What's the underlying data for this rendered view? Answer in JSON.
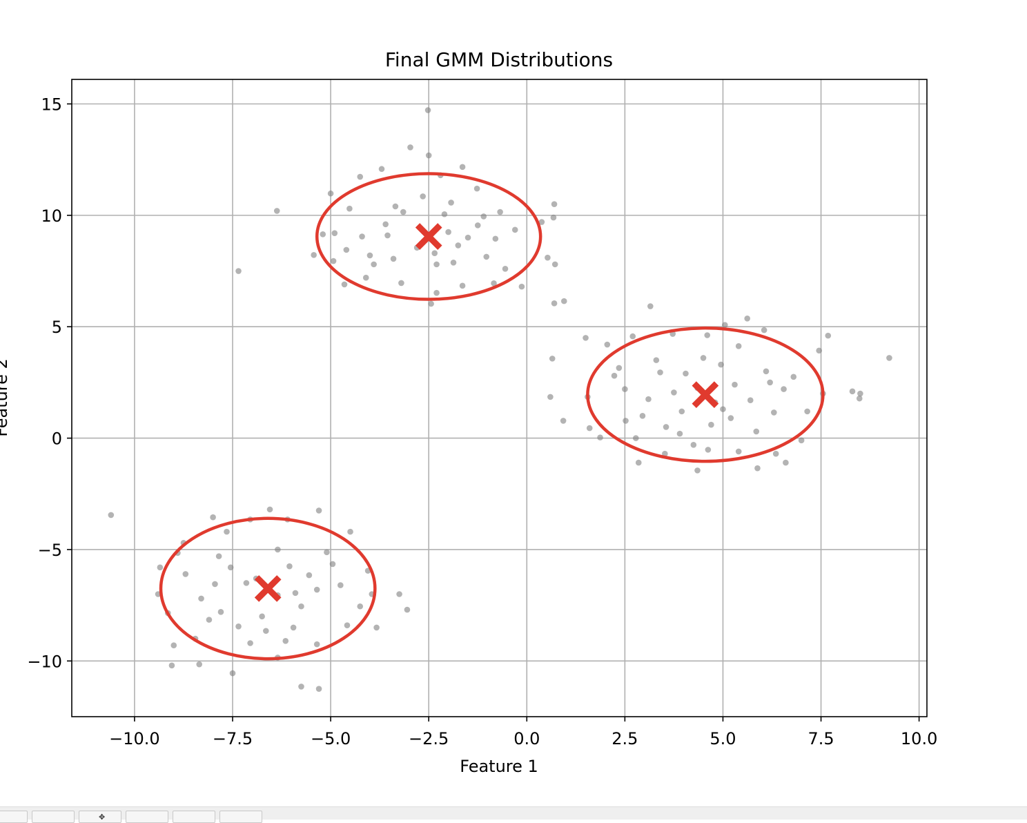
{
  "chart_data": {
    "type": "scatter",
    "title": "Final GMM Distributions",
    "xlabel": "Feature 1",
    "ylabel": "Feature 2",
    "xlim": [
      -11.6,
      10.2
    ],
    "ylim": [
      -12.5,
      16.1
    ],
    "xticks": [
      -10.0,
      -7.5,
      -5.0,
      -2.5,
      0.0,
      2.5,
      5.0,
      7.5,
      10.0
    ],
    "xtick_labels": [
      "−10.0",
      "−7.5",
      "−5.0",
      "−2.5",
      "0.0",
      "2.5",
      "5.0",
      "7.5",
      "10.0"
    ],
    "yticks": [
      -10,
      -5,
      0,
      5,
      10,
      15
    ],
    "ytick_labels": [
      "−10",
      "−5",
      "0",
      "5",
      "10",
      "15"
    ],
    "grid": true,
    "point_color": "#808080",
    "ellipse_color": "#e03a2e",
    "mean_color": "#e03a2e",
    "points": [
      [
        -2.52,
        14.72
      ],
      [
        -2.97,
        13.05
      ],
      [
        -2.5,
        12.69
      ],
      [
        -3.7,
        12.08
      ],
      [
        -2.2,
        11.8
      ],
      [
        -5.0,
        10.98
      ],
      [
        -4.25,
        11.73
      ],
      [
        -1.64,
        12.17
      ],
      [
        -1.27,
        11.2
      ],
      [
        -4.52,
        10.3
      ],
      [
        -6.37,
        10.2
      ],
      [
        -3.15,
        10.15
      ],
      [
        -1.93,
        10.57
      ],
      [
        -0.68,
        10.15
      ],
      [
        -5.2,
        9.15
      ],
      [
        -4.9,
        9.2
      ],
      [
        -3.55,
        9.1
      ],
      [
        -2.0,
        9.25
      ],
      [
        -1.5,
        9.0
      ],
      [
        -0.8,
        8.95
      ],
      [
        0.38,
        9.7
      ],
      [
        0.7,
        10.5
      ],
      [
        0.68,
        9.9
      ],
      [
        -5.43,
        8.22
      ],
      [
        -4.93,
        7.95
      ],
      [
        -4.0,
        8.2
      ],
      [
        -3.4,
        8.05
      ],
      [
        -2.3,
        7.8
      ],
      [
        -1.87,
        7.88
      ],
      [
        -1.03,
        8.14
      ],
      [
        0.53,
        8.1
      ],
      [
        0.72,
        7.8
      ],
      [
        -7.35,
        7.5
      ],
      [
        -4.65,
        6.9
      ],
      [
        -4.1,
        7.2
      ],
      [
        -3.2,
        6.96
      ],
      [
        -2.3,
        6.52
      ],
      [
        -1.64,
        6.84
      ],
      [
        -0.84,
        6.95
      ],
      [
        -0.13,
        6.8
      ],
      [
        -2.44,
        6.03
      ],
      [
        0.7,
        6.05
      ],
      [
        0.95,
        6.15
      ],
      [
        -2.8,
        8.55
      ],
      [
        -3.6,
        9.6
      ],
      [
        -1.1,
        9.95
      ],
      [
        -4.2,
        9.05
      ],
      [
        -2.65,
        10.85
      ],
      [
        -0.3,
        9.35
      ],
      [
        -3.9,
        7.8
      ],
      [
        -2.1,
        10.05
      ],
      [
        -1.75,
        8.65
      ],
      [
        -0.55,
        7.6
      ],
      [
        -3.35,
        10.4
      ],
      [
        -2.35,
        8.3
      ],
      [
        -4.6,
        8.45
      ],
      [
        -1.25,
        9.55
      ],
      [
        3.15,
        5.92
      ],
      [
        5.05,
        5.08
      ],
      [
        5.62,
        5.37
      ],
      [
        6.05,
        4.85
      ],
      [
        1.5,
        4.5
      ],
      [
        2.05,
        4.2
      ],
      [
        2.7,
        4.57
      ],
      [
        3.72,
        4.68
      ],
      [
        4.6,
        4.62
      ],
      [
        5.4,
        4.13
      ],
      [
        7.68,
        4.6
      ],
      [
        7.45,
        3.93
      ],
      [
        9.24,
        3.6
      ],
      [
        0.65,
        3.57
      ],
      [
        2.23,
        2.8
      ],
      [
        3.4,
        2.95
      ],
      [
        4.35,
        2.25
      ],
      [
        5.3,
        2.4
      ],
      [
        6.55,
        2.2
      ],
      [
        7.55,
        2.0
      ],
      [
        8.3,
        2.1
      ],
      [
        8.5,
        2.0
      ],
      [
        8.48,
        1.78
      ],
      [
        0.6,
        1.85
      ],
      [
        1.55,
        1.85
      ],
      [
        3.1,
        1.75
      ],
      [
        3.95,
        1.2
      ],
      [
        5.0,
        1.3
      ],
      [
        6.3,
        1.15
      ],
      [
        7.15,
        1.2
      ],
      [
        0.93,
        0.78
      ],
      [
        2.52,
        0.78
      ],
      [
        1.6,
        0.45
      ],
      [
        1.87,
        0.03
      ],
      [
        2.78,
        0.0
      ],
      [
        3.9,
        0.2
      ],
      [
        4.7,
        0.6
      ],
      [
        5.85,
        0.3
      ],
      [
        7.0,
        -0.1
      ],
      [
        2.85,
        -1.1
      ],
      [
        3.52,
        -0.7
      ],
      [
        4.25,
        -0.3
      ],
      [
        4.62,
        -0.52
      ],
      [
        5.4,
        -0.6
      ],
      [
        6.35,
        -0.7
      ],
      [
        6.6,
        -1.1
      ],
      [
        4.35,
        -1.45
      ],
      [
        5.88,
        -1.35
      ],
      [
        3.3,
        3.5
      ],
      [
        4.95,
        3.3
      ],
      [
        6.1,
        3.0
      ],
      [
        2.5,
        2.2
      ],
      [
        4.05,
        2.9
      ],
      [
        5.7,
        1.7
      ],
      [
        3.55,
        0.5
      ],
      [
        6.8,
        2.75
      ],
      [
        4.5,
        3.6
      ],
      [
        2.95,
        1.0
      ],
      [
        5.2,
        0.9
      ],
      [
        3.75,
        2.05
      ],
      [
        6.2,
        2.5
      ],
      [
        4.8,
        1.6
      ],
      [
        2.35,
        3.15
      ],
      [
        -10.6,
        -3.45
      ],
      [
        -6.55,
        -3.2
      ],
      [
        -5.3,
        -3.25
      ],
      [
        -7.05,
        -3.65
      ],
      [
        -8.0,
        -3.55
      ],
      [
        -8.75,
        -4.7
      ],
      [
        -6.1,
        -3.65
      ],
      [
        -4.5,
        -4.2
      ],
      [
        -9.35,
        -5.8
      ],
      [
        -7.85,
        -5.3
      ],
      [
        -6.35,
        -5.0
      ],
      [
        -5.1,
        -5.12
      ],
      [
        -4.05,
        -5.95
      ],
      [
        -9.4,
        -7.0
      ],
      [
        -8.3,
        -7.2
      ],
      [
        -7.15,
        -6.5
      ],
      [
        -6.35,
        -7.05
      ],
      [
        -5.35,
        -6.8
      ],
      [
        -4.75,
        -6.6
      ],
      [
        -3.95,
        -7.0
      ],
      [
        -3.25,
        -7.0
      ],
      [
        -3.05,
        -7.7
      ],
      [
        -9.15,
        -7.85
      ],
      [
        -7.8,
        -7.8
      ],
      [
        -6.75,
        -8.0
      ],
      [
        -5.95,
        -8.5
      ],
      [
        -4.58,
        -8.4
      ],
      [
        -3.83,
        -8.5
      ],
      [
        -9.0,
        -9.3
      ],
      [
        -8.45,
        -9.0
      ],
      [
        -7.05,
        -9.2
      ],
      [
        -6.35,
        -9.85
      ],
      [
        -5.35,
        -9.25
      ],
      [
        -9.05,
        -10.2
      ],
      [
        -8.35,
        -10.15
      ],
      [
        -7.5,
        -10.55
      ],
      [
        -5.75,
        -11.15
      ],
      [
        -5.3,
        -11.25
      ],
      [
        -8.7,
        -6.1
      ],
      [
        -7.55,
        -5.8
      ],
      [
        -6.9,
        -6.3
      ],
      [
        -6.05,
        -5.75
      ],
      [
        -5.75,
        -7.55
      ],
      [
        -7.35,
        -8.45
      ],
      [
        -6.15,
        -9.1
      ],
      [
        -8.1,
        -8.15
      ],
      [
        -4.95,
        -5.65
      ],
      [
        -7.65,
        -4.2
      ],
      [
        -6.65,
        -8.65
      ],
      [
        -8.9,
        -5.15
      ],
      [
        -5.55,
        -6.15
      ],
      [
        -4.25,
        -7.55
      ],
      [
        -7.95,
        -6.55
      ],
      [
        -5.9,
        -6.95
      ]
    ],
    "components": [
      {
        "mean": [
          -2.5,
          9.05
        ],
        "semi_axes": [
          2.85,
          2.82
        ],
        "angle_deg": 0
      },
      {
        "mean": [
          4.55,
          1.95
        ],
        "semi_axes": [
          3.0,
          2.99
        ],
        "angle_deg": 0
      },
      {
        "mean": [
          -6.6,
          -6.75
        ],
        "semi_axes": [
          2.73,
          3.15
        ],
        "angle_deg": 0
      }
    ]
  },
  "toolbar": {
    "buttons": [
      {
        "glyph": ""
      },
      {
        "glyph": ""
      },
      {
        "glyph": "✥"
      },
      {
        "glyph": ""
      },
      {
        "glyph": ""
      },
      {
        "glyph": ""
      }
    ]
  }
}
